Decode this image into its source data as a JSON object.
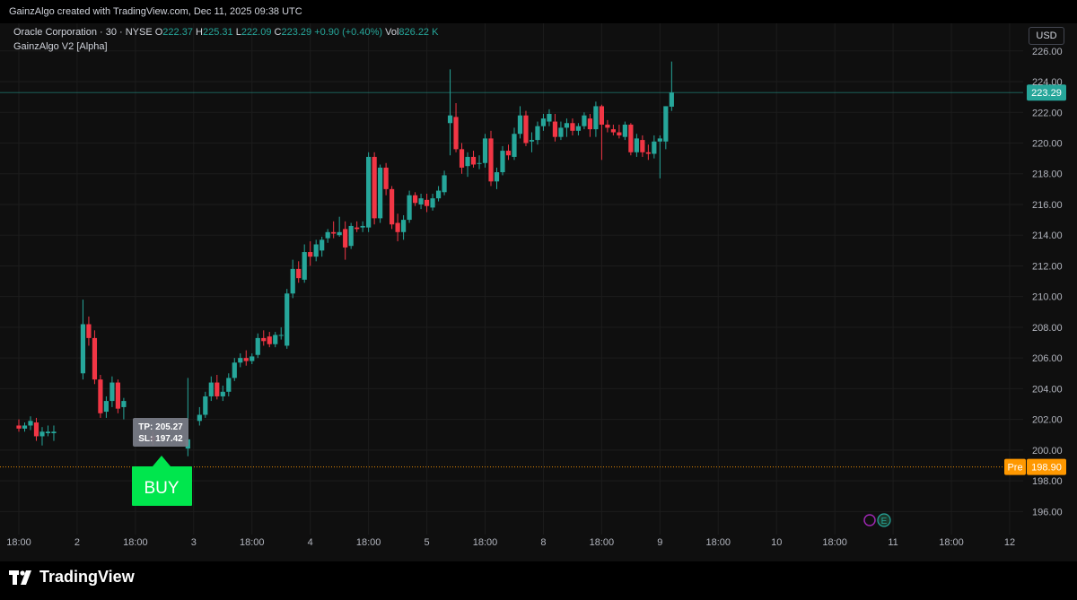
{
  "credit": "GainzAlgo created with TradingView.com, Dec 11, 2025 09:38 UTC",
  "legend": {
    "symbol": "Oracle Corporation · 30 · NYSE",
    "o_label": "O",
    "o_val": "222.37",
    "h_label": "H",
    "h_val": "225.31",
    "l_label": "L",
    "l_val": "222.09",
    "c_label": "C",
    "c_val": "223.29",
    "change": "+0.90 (+0.40%)",
    "vol_label": "Vol",
    "vol_val": "826.22 K",
    "indicator": "GainzAlgo V2 [Alpha]"
  },
  "currency_button": "USD",
  "footer_brand": "TradingView",
  "signal": {
    "label": "BUY",
    "tp": "TP: 205.27",
    "sl": "SL: 197.42",
    "color": "#00e64d"
  },
  "colors": {
    "up": "#26a69a",
    "down": "#f23645",
    "pre": "#ff9800"
  },
  "chart_data": {
    "type": "candlestick",
    "ylim": [
      194.5,
      227.8
    ],
    "y_ticks": [
      196,
      198,
      200,
      202,
      204,
      206,
      208,
      210,
      212,
      214,
      216,
      218,
      220,
      222,
      224,
      226
    ],
    "y_tick_labels": [
      "196.00",
      "198.00",
      "200.00",
      "202.00",
      "204.00",
      "206.00",
      "208.00",
      "210.00",
      "212.00",
      "214.00",
      "216.00",
      "218.00",
      "220.00",
      "222.00",
      "224.00",
      "226.00"
    ],
    "x_ticks": [
      {
        "i": 0,
        "label": "18:00"
      },
      {
        "i": 10,
        "label": "2"
      },
      {
        "i": 20,
        "label": "18:00"
      },
      {
        "i": 30,
        "label": "3"
      },
      {
        "i": 40,
        "label": "18:00"
      },
      {
        "i": 50,
        "label": "4"
      },
      {
        "i": 60,
        "label": "18:00"
      },
      {
        "i": 70,
        "label": "5"
      },
      {
        "i": 80,
        "label": "18:00"
      },
      {
        "i": 90,
        "label": "8"
      },
      {
        "i": 100,
        "label": "18:00"
      },
      {
        "i": 110,
        "label": "9"
      },
      {
        "i": 120,
        "label": "18:00"
      },
      {
        "i": 130,
        "label": "10"
      },
      {
        "i": 140,
        "label": "18:00"
      },
      {
        "i": 150,
        "label": "11"
      },
      {
        "i": 160,
        "label": "18:00"
      },
      {
        "i": 170,
        "label": "12"
      }
    ],
    "last_price": {
      "value": 223.29,
      "label": "223.29"
    },
    "pre_price": {
      "tag": "Pre",
      "value": 198.9,
      "label": "198.90"
    },
    "candles": [
      {
        "i": 0,
        "o": 201.6,
        "h": 202.0,
        "l": 201.2,
        "c": 201.4
      },
      {
        "i": 1,
        "o": 201.4,
        "h": 201.8,
        "l": 201.2,
        "c": 201.6
      },
      {
        "i": 2,
        "o": 201.6,
        "h": 202.2,
        "l": 201.3,
        "c": 201.9
      },
      {
        "i": 3,
        "o": 201.8,
        "h": 202.1,
        "l": 200.6,
        "c": 200.9
      },
      {
        "i": 4,
        "o": 200.9,
        "h": 201.5,
        "l": 200.3,
        "c": 201.2
      },
      {
        "i": 5,
        "o": 201.1,
        "h": 201.6,
        "l": 200.9,
        "c": 201.2
      },
      {
        "i": 6,
        "o": 201.1,
        "h": 201.6,
        "l": 200.6,
        "c": 201.2
      },
      {
        "i": 11,
        "o": 205.0,
        "h": 209.8,
        "l": 204.6,
        "c": 208.2
      },
      {
        "i": 12,
        "o": 208.2,
        "h": 208.7,
        "l": 206.8,
        "c": 207.3
      },
      {
        "i": 13,
        "o": 207.3,
        "h": 207.8,
        "l": 204.3,
        "c": 204.6
      },
      {
        "i": 14,
        "o": 204.6,
        "h": 204.9,
        "l": 202.1,
        "c": 202.4
      },
      {
        "i": 15,
        "o": 202.5,
        "h": 203.5,
        "l": 202.1,
        "c": 203.2
      },
      {
        "i": 16,
        "o": 203.2,
        "h": 204.8,
        "l": 202.8,
        "c": 204.4
      },
      {
        "i": 17,
        "o": 204.4,
        "h": 204.6,
        "l": 202.4,
        "c": 202.7
      },
      {
        "i": 18,
        "o": 202.8,
        "h": 203.4,
        "l": 202.0,
        "c": 203.2
      },
      {
        "i": 23,
        "o": 200.9,
        "h": 201.2,
        "l": 200.3,
        "c": 200.6
      },
      {
        "i": 29,
        "o": 200.1,
        "h": 204.7,
        "l": 199.6,
        "c": 200.7
      },
      {
        "i": 31,
        "o": 201.9,
        "h": 202.8,
        "l": 201.6,
        "c": 202.3
      },
      {
        "i": 32,
        "o": 202.3,
        "h": 203.8,
        "l": 202.1,
        "c": 203.5
      },
      {
        "i": 33,
        "o": 203.5,
        "h": 204.8,
        "l": 203.2,
        "c": 204.4
      },
      {
        "i": 34,
        "o": 204.4,
        "h": 204.9,
        "l": 203.3,
        "c": 203.5
      },
      {
        "i": 35,
        "o": 203.5,
        "h": 204.2,
        "l": 203.2,
        "c": 203.8
      },
      {
        "i": 36,
        "o": 203.8,
        "h": 205.0,
        "l": 203.5,
        "c": 204.7
      },
      {
        "i": 37,
        "o": 204.7,
        "h": 206.0,
        "l": 204.5,
        "c": 205.7
      },
      {
        "i": 38,
        "o": 205.7,
        "h": 206.3,
        "l": 205.4,
        "c": 206.0
      },
      {
        "i": 39,
        "o": 206.0,
        "h": 206.5,
        "l": 205.5,
        "c": 205.8
      },
      {
        "i": 40,
        "o": 205.8,
        "h": 206.3,
        "l": 205.6,
        "c": 206.1
      },
      {
        "i": 41,
        "o": 206.2,
        "h": 207.6,
        "l": 206.0,
        "c": 207.3
      },
      {
        "i": 42,
        "o": 207.3,
        "h": 207.8,
        "l": 206.8,
        "c": 207.1
      },
      {
        "i": 43,
        "o": 207.4,
        "h": 207.7,
        "l": 206.7,
        "c": 206.9
      },
      {
        "i": 44,
        "o": 206.9,
        "h": 207.7,
        "l": 206.7,
        "c": 207.5
      },
      {
        "i": 45,
        "o": 207.5,
        "h": 208.0,
        "l": 207.2,
        "c": 207.5
      },
      {
        "i": 46,
        "o": 206.8,
        "h": 210.5,
        "l": 206.6,
        "c": 210.2
      },
      {
        "i": 47,
        "o": 210.2,
        "h": 212.4,
        "l": 209.9,
        "c": 211.8
      },
      {
        "i": 48,
        "o": 211.8,
        "h": 212.3,
        "l": 210.9,
        "c": 211.2
      },
      {
        "i": 49,
        "o": 211.1,
        "h": 213.4,
        "l": 210.9,
        "c": 212.9
      },
      {
        "i": 50,
        "o": 212.9,
        "h": 213.6,
        "l": 212.0,
        "c": 212.6
      },
      {
        "i": 51,
        "o": 212.6,
        "h": 213.7,
        "l": 212.3,
        "c": 213.4
      },
      {
        "i": 52,
        "o": 213.0,
        "h": 213.9,
        "l": 212.6,
        "c": 213.7
      },
      {
        "i": 53,
        "o": 213.8,
        "h": 214.4,
        "l": 213.5,
        "c": 214.2
      },
      {
        "i": 54,
        "o": 214.2,
        "h": 214.9,
        "l": 213.8,
        "c": 214.1
      },
      {
        "i": 55,
        "o": 214.0,
        "h": 215.2,
        "l": 213.9,
        "c": 214.2
      },
      {
        "i": 56,
        "o": 214.4,
        "h": 214.9,
        "l": 212.4,
        "c": 213.2
      },
      {
        "i": 57,
        "o": 213.3,
        "h": 214.8,
        "l": 213.1,
        "c": 214.6
      },
      {
        "i": 58,
        "o": 214.5,
        "h": 214.9,
        "l": 214.2,
        "c": 214.4
      },
      {
        "i": 59,
        "o": 214.5,
        "h": 214.9,
        "l": 214.2,
        "c": 214.6
      },
      {
        "i": 60,
        "o": 214.5,
        "h": 219.4,
        "l": 214.2,
        "c": 219.1
      },
      {
        "i": 61,
        "o": 219.1,
        "h": 219.4,
        "l": 214.7,
        "c": 215.1
      },
      {
        "i": 62,
        "o": 215.1,
        "h": 218.6,
        "l": 214.8,
        "c": 218.4
      },
      {
        "i": 63,
        "o": 218.4,
        "h": 218.7,
        "l": 216.6,
        "c": 217.0
      },
      {
        "i": 64,
        "o": 217.0,
        "h": 217.2,
        "l": 214.4,
        "c": 214.7
      },
      {
        "i": 65,
        "o": 214.8,
        "h": 215.4,
        "l": 213.6,
        "c": 214.2
      },
      {
        "i": 66,
        "o": 214.2,
        "h": 215.3,
        "l": 213.7,
        "c": 215.0
      },
      {
        "i": 67,
        "o": 215.0,
        "h": 216.9,
        "l": 214.8,
        "c": 216.6
      },
      {
        "i": 68,
        "o": 216.6,
        "h": 216.8,
        "l": 215.9,
        "c": 216.1
      },
      {
        "i": 69,
        "o": 216.0,
        "h": 216.7,
        "l": 215.7,
        "c": 216.4
      },
      {
        "i": 70,
        "o": 216.3,
        "h": 216.7,
        "l": 215.5,
        "c": 215.9
      },
      {
        "i": 71,
        "o": 215.8,
        "h": 216.7,
        "l": 215.6,
        "c": 216.4
      },
      {
        "i": 72,
        "o": 216.4,
        "h": 217.2,
        "l": 216.2,
        "c": 216.9
      },
      {
        "i": 73,
        "o": 216.8,
        "h": 218.2,
        "l": 216.6,
        "c": 217.9
      },
      {
        "i": 74,
        "o": 221.3,
        "h": 224.8,
        "l": 219.2,
        "c": 221.8
      },
      {
        "i": 75,
        "o": 221.7,
        "h": 222.6,
        "l": 219.4,
        "c": 219.6
      },
      {
        "i": 76,
        "o": 219.6,
        "h": 220.0,
        "l": 218.0,
        "c": 218.4
      },
      {
        "i": 77,
        "o": 218.5,
        "h": 219.4,
        "l": 217.8,
        "c": 219.1
      },
      {
        "i": 78,
        "o": 219.1,
        "h": 219.5,
        "l": 218.4,
        "c": 218.6
      },
      {
        "i": 79,
        "o": 218.7,
        "h": 219.2,
        "l": 218.3,
        "c": 218.7
      },
      {
        "i": 80,
        "o": 218.7,
        "h": 220.6,
        "l": 218.4,
        "c": 220.3
      },
      {
        "i": 81,
        "o": 220.3,
        "h": 220.8,
        "l": 217.2,
        "c": 217.5
      },
      {
        "i": 82,
        "o": 217.5,
        "h": 218.4,
        "l": 217.0,
        "c": 218.1
      },
      {
        "i": 83,
        "o": 218.1,
        "h": 219.8,
        "l": 217.9,
        "c": 219.5
      },
      {
        "i": 84,
        "o": 219.5,
        "h": 219.9,
        "l": 218.9,
        "c": 219.2
      },
      {
        "i": 85,
        "o": 219.1,
        "h": 221.0,
        "l": 218.9,
        "c": 220.6
      },
      {
        "i": 86,
        "o": 220.6,
        "h": 222.4,
        "l": 220.3,
        "c": 221.8
      },
      {
        "i": 87,
        "o": 221.8,
        "h": 222.1,
        "l": 219.8,
        "c": 220.0
      },
      {
        "i": 88,
        "o": 220.1,
        "h": 220.7,
        "l": 219.4,
        "c": 220.2
      },
      {
        "i": 89,
        "o": 220.2,
        "h": 221.4,
        "l": 219.9,
        "c": 221.1
      },
      {
        "i": 90,
        "o": 221.1,
        "h": 221.9,
        "l": 220.8,
        "c": 221.6
      },
      {
        "i": 91,
        "o": 221.4,
        "h": 222.2,
        "l": 221.1,
        "c": 221.9
      },
      {
        "i": 92,
        "o": 221.4,
        "h": 221.9,
        "l": 220.1,
        "c": 220.4
      },
      {
        "i": 93,
        "o": 220.4,
        "h": 221.4,
        "l": 220.2,
        "c": 221.0
      },
      {
        "i": 94,
        "o": 221.0,
        "h": 221.6,
        "l": 220.4,
        "c": 221.3
      },
      {
        "i": 95,
        "o": 221.3,
        "h": 221.6,
        "l": 220.5,
        "c": 220.8
      },
      {
        "i": 96,
        "o": 220.8,
        "h": 221.3,
        "l": 220.5,
        "c": 221.1
      },
      {
        "i": 97,
        "o": 221.1,
        "h": 222.0,
        "l": 220.9,
        "c": 221.8
      },
      {
        "i": 98,
        "o": 221.6,
        "h": 221.9,
        "l": 220.4,
        "c": 220.9
      },
      {
        "i": 99,
        "o": 220.9,
        "h": 222.7,
        "l": 220.4,
        "c": 222.4
      },
      {
        "i": 100,
        "o": 222.4,
        "h": 222.5,
        "l": 218.9,
        "c": 221.2
      },
      {
        "i": 101,
        "o": 221.2,
        "h": 221.5,
        "l": 220.7,
        "c": 221.0
      },
      {
        "i": 102,
        "o": 220.9,
        "h": 221.2,
        "l": 220.5,
        "c": 220.7
      },
      {
        "i": 103,
        "o": 220.7,
        "h": 221.2,
        "l": 220.3,
        "c": 220.5
      },
      {
        "i": 104,
        "o": 220.4,
        "h": 221.4,
        "l": 220.2,
        "c": 221.2
      },
      {
        "i": 105,
        "o": 221.2,
        "h": 221.3,
        "l": 219.2,
        "c": 219.4
      },
      {
        "i": 106,
        "o": 219.4,
        "h": 220.6,
        "l": 219.1,
        "c": 220.3
      },
      {
        "i": 107,
        "o": 220.2,
        "h": 220.5,
        "l": 219.1,
        "c": 219.4
      },
      {
        "i": 108,
        "o": 219.4,
        "h": 219.9,
        "l": 218.9,
        "c": 219.3
      },
      {
        "i": 109,
        "o": 219.3,
        "h": 220.5,
        "l": 219.0,
        "c": 220.1
      },
      {
        "i": 110,
        "o": 220.1,
        "h": 220.5,
        "l": 217.7,
        "c": 220.3
      },
      {
        "i": 111,
        "o": 220.1,
        "h": 222.4,
        "l": 219.6,
        "c": 222.4
      },
      {
        "i": 112,
        "o": 222.37,
        "h": 225.31,
        "l": 222.09,
        "c": 223.29
      }
    ]
  }
}
